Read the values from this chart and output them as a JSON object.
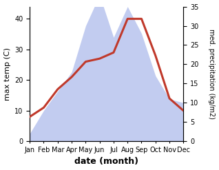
{
  "months": [
    "Jan",
    "Feb",
    "Mar",
    "Apr",
    "May",
    "Jun",
    "Jul",
    "Aug",
    "Sep",
    "Oct",
    "Nov",
    "Dec"
  ],
  "month_indices": [
    1,
    2,
    3,
    4,
    5,
    6,
    7,
    8,
    9,
    10,
    11,
    12
  ],
  "temp": [
    8,
    11,
    17,
    21,
    26,
    27,
    29,
    40,
    40,
    28,
    14,
    10
  ],
  "precip": [
    2,
    8,
    13,
    18,
    30,
    38,
    27,
    35,
    28,
    17,
    11,
    10
  ],
  "temp_color": "#c0392b",
  "precip_fill_color": "#b8c4ee",
  "precip_fill_alpha": 0.85,
  "ylabel_left": "max temp (C)",
  "ylabel_right": "med. precipitation (kg/m2)",
  "xlabel": "date (month)",
  "ylim_left": [
    0,
    44
  ],
  "ylim_right": [
    0,
    34
  ],
  "yticks_left": [
    0,
    10,
    20,
    30,
    40
  ],
  "yticks_right": [
    0,
    5,
    10,
    15,
    20,
    25,
    30,
    35
  ],
  "bg_color": "#ffffff",
  "temp_linewidth": 2.2,
  "tick_fontsize": 7,
  "label_fontsize": 8,
  "xlabel_fontsize": 9
}
